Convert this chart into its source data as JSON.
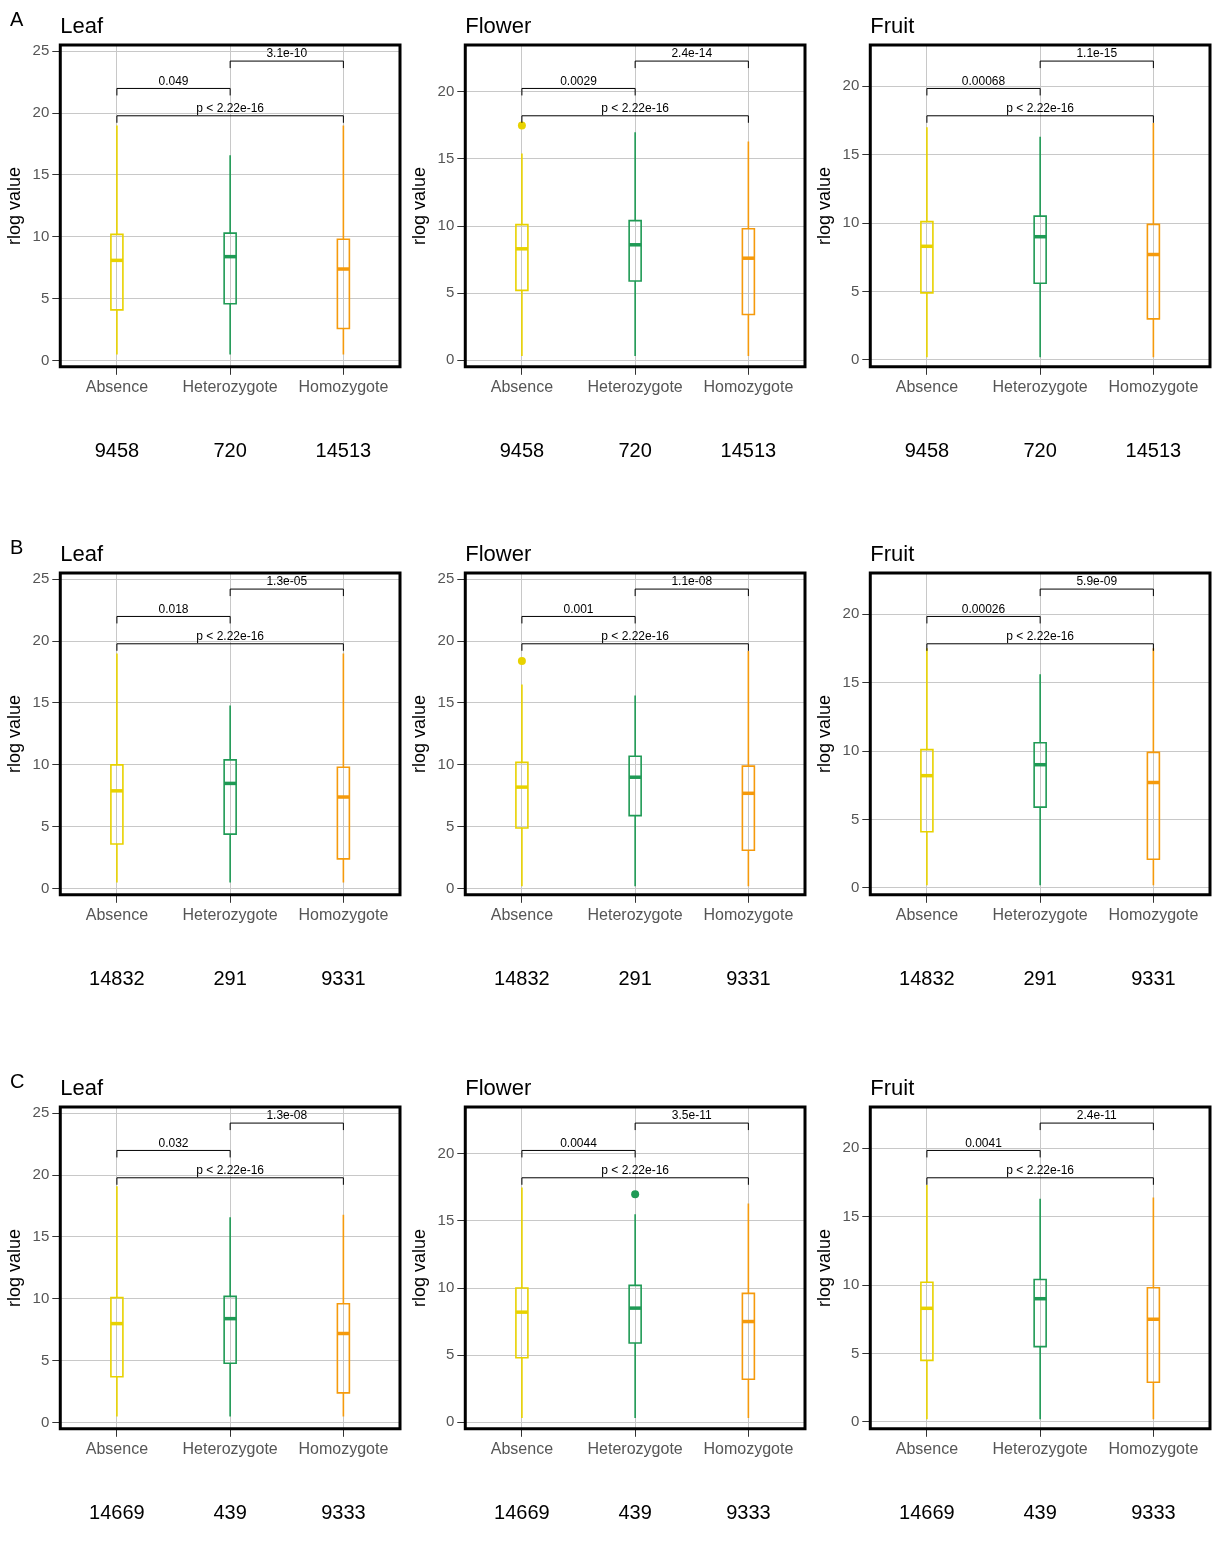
{
  "chart_data": [
    {
      "type": "box",
      "title": "Leaf",
      "ylabel": "rlog value",
      "categories": [
        "Absence",
        "Heterozygote",
        "Homozygote"
      ],
      "colors": [
        "#e8d200",
        "#1f9a55",
        "#f59a0c"
      ],
      "ylim": [
        -0.5,
        25.5
      ],
      "yticks": [
        0,
        5,
        10,
        15,
        20,
        25
      ],
      "grid": true,
      "legend": false,
      "boxes": [
        {
          "low": 0.5,
          "q1": 4.1,
          "median": 8.1,
          "q3": 10.2,
          "high": 19
        },
        {
          "low": 0.5,
          "q1": 4.6,
          "median": 8.4,
          "q3": 10.3,
          "high": 16.6
        },
        {
          "low": 0.5,
          "q1": 2.6,
          "median": 7.4,
          "q3": 9.8,
          "high": 19
        }
      ],
      "annotations": [
        "0.049",
        "3.1e-10",
        "p < 2.22e-16",
        "A",
        "9458",
        "720",
        "14513"
      ]
    },
    {
      "type": "box",
      "title": "Flower",
      "ylabel": "rlog value",
      "categories": [
        "Absence",
        "Heterozygote",
        "Homozygote"
      ],
      "colors": [
        "#e8d200",
        "#1f9a55",
        "#f59a0c"
      ],
      "ylim": [
        -0.5,
        23.5
      ],
      "yticks": [
        0,
        5,
        10,
        15,
        20
      ],
      "grid": true,
      "legend": false,
      "boxes": [
        {
          "low": 0.3,
          "q1": 5.2,
          "median": 8.3,
          "q3": 10.1,
          "high": 15.4,
          "outliers": [
            17.5
          ]
        },
        {
          "low": 0.3,
          "q1": 5.9,
          "median": 8.6,
          "q3": 10.4,
          "high": 17
        },
        {
          "low": 0.3,
          "q1": 3.4,
          "median": 7.6,
          "q3": 9.8,
          "high": 16.3
        }
      ],
      "annotations": [
        "0.0029",
        "2.4e-14",
        "p < 2.22e-16",
        "9458",
        "720",
        "14513"
      ]
    },
    {
      "type": "box",
      "title": "Fruit",
      "ylabel": "rlog value",
      "categories": [
        "Absence",
        "Heterozygote",
        "Homozygote"
      ],
      "colors": [
        "#e8d200",
        "#1f9a55",
        "#f59a0c"
      ],
      "ylim": [
        -0.5,
        23
      ],
      "yticks": [
        0,
        5,
        10,
        15,
        20
      ],
      "grid": true,
      "legend": false,
      "boxes": [
        {
          "low": 0.2,
          "q1": 4.9,
          "median": 8.3,
          "q3": 10.1,
          "high": 17
        },
        {
          "low": 0.2,
          "q1": 5.6,
          "median": 9,
          "q3": 10.5,
          "high": 16.3
        },
        {
          "low": 0.2,
          "q1": 3,
          "median": 7.7,
          "q3": 9.9,
          "high": 17.3
        }
      ],
      "annotations": [
        "0.00068",
        "1.1e-15",
        "p < 2.22e-16",
        "9458",
        "720",
        "14513"
      ]
    },
    {
      "type": "box",
      "title": "Leaf",
      "ylabel": "rlog value",
      "categories": [
        "Absence",
        "Heterozygote",
        "Homozygote"
      ],
      "colors": [
        "#e8d200",
        "#1f9a55",
        "#f59a0c"
      ],
      "ylim": [
        -0.5,
        25.5
      ],
      "yticks": [
        0,
        5,
        10,
        15,
        20,
        25
      ],
      "grid": true,
      "legend": false,
      "boxes": [
        {
          "low": 0.5,
          "q1": 3.6,
          "median": 7.9,
          "q3": 10,
          "high": 19
        },
        {
          "low": 0.5,
          "q1": 4.4,
          "median": 8.5,
          "q3": 10.4,
          "high": 14.8
        },
        {
          "low": 0.5,
          "q1": 2.4,
          "median": 7.4,
          "q3": 9.8,
          "high": 19
        }
      ],
      "annotations": [
        "0.018",
        "1.3e-05",
        "p < 2.22e-16",
        "B",
        "14832",
        "291",
        "9331"
      ]
    },
    {
      "type": "box",
      "title": "Flower",
      "ylabel": "rlog value",
      "categories": [
        "Absence",
        "Heterozygote",
        "Homozygote"
      ],
      "colors": [
        "#e8d200",
        "#1f9a55",
        "#f59a0c"
      ],
      "ylim": [
        -0.5,
        25.5
      ],
      "yticks": [
        0,
        5,
        10,
        15,
        20,
        25
      ],
      "grid": true,
      "legend": false,
      "boxes": [
        {
          "low": 0.2,
          "q1": 4.9,
          "median": 8.2,
          "q3": 10.2,
          "high": 16.5,
          "outliers": [
            18.4
          ]
        },
        {
          "low": 0.2,
          "q1": 5.9,
          "median": 9,
          "q3": 10.7,
          "high": 15.6
        },
        {
          "low": 0.2,
          "q1": 3.1,
          "median": 7.7,
          "q3": 9.9,
          "high": 19.2
        }
      ],
      "annotations": [
        "0.001",
        "1.1e-08",
        "p < 2.22e-16",
        "14832",
        "291",
        "9331"
      ]
    },
    {
      "type": "box",
      "title": "Fruit",
      "ylabel": "rlog value",
      "categories": [
        "Absence",
        "Heterozygote",
        "Homozygote"
      ],
      "colors": [
        "#e8d200",
        "#1f9a55",
        "#f59a0c"
      ],
      "ylim": [
        -0.5,
        23
      ],
      "yticks": [
        0,
        5,
        10,
        15,
        20
      ],
      "grid": true,
      "legend": false,
      "boxes": [
        {
          "low": 0.2,
          "q1": 4.1,
          "median": 8.2,
          "q3": 10.1,
          "high": 17.5
        },
        {
          "low": 0.2,
          "q1": 5.9,
          "median": 9,
          "q3": 10.6,
          "high": 15.6
        },
        {
          "low": 0.2,
          "q1": 2.1,
          "median": 7.7,
          "q3": 9.9,
          "high": 17.5
        }
      ],
      "annotations": [
        "0.00026",
        "5.9e-09",
        "p < 2.22e-16",
        "14832",
        "291",
        "9331"
      ]
    },
    {
      "type": "box",
      "title": "Leaf",
      "ylabel": "rlog value",
      "categories": [
        "Absence",
        "Heterozygote",
        "Homozygote"
      ],
      "colors": [
        "#e8d200",
        "#1f9a55",
        "#f59a0c"
      ],
      "ylim": [
        -0.5,
        25.5
      ],
      "yticks": [
        0,
        5,
        10,
        15,
        20,
        25
      ],
      "grid": true,
      "legend": false,
      "boxes": [
        {
          "low": 0.5,
          "q1": 3.7,
          "median": 8,
          "q3": 10.1,
          "high": 19.1
        },
        {
          "low": 0.5,
          "q1": 4.8,
          "median": 8.4,
          "q3": 10.2,
          "high": 16.6
        },
        {
          "low": 0.5,
          "q1": 2.4,
          "median": 7.2,
          "q3": 9.6,
          "high": 16.8
        }
      ],
      "annotations": [
        "0.032",
        "1.3e-08",
        "p < 2.22e-16",
        "C",
        "14669",
        "439",
        "9333"
      ]
    },
    {
      "type": "box",
      "title": "Flower",
      "ylabel": "rlog value",
      "categories": [
        "Absence",
        "Heterozygote",
        "Homozygote"
      ],
      "colors": [
        "#e8d200",
        "#1f9a55",
        "#f59a0c"
      ],
      "ylim": [
        -0.5,
        23.5
      ],
      "yticks": [
        0,
        5,
        10,
        15,
        20
      ],
      "grid": true,
      "legend": false,
      "boxes": [
        {
          "low": 0.3,
          "q1": 4.8,
          "median": 8.2,
          "q3": 10,
          "high": 17.5
        },
        {
          "low": 0.3,
          "q1": 5.9,
          "median": 8.5,
          "q3": 10.2,
          "high": 15.5,
          "outliers": [
            17
          ]
        },
        {
          "low": 0.3,
          "q1": 3.2,
          "median": 7.5,
          "q3": 9.6,
          "high": 16.3
        }
      ],
      "annotations": [
        "0.0044",
        "3.5e-11",
        "p < 2.22e-16",
        "14669",
        "439",
        "9333"
      ]
    },
    {
      "type": "box",
      "title": "Fruit",
      "ylabel": "rlog value",
      "categories": [
        "Absence",
        "Heterozygote",
        "Homozygote"
      ],
      "colors": [
        "#e8d200",
        "#1f9a55",
        "#f59a0c"
      ],
      "ylim": [
        -0.5,
        23
      ],
      "yticks": [
        0,
        5,
        10,
        15,
        20
      ],
      "grid": true,
      "legend": false,
      "boxes": [
        {
          "low": 0.2,
          "q1": 4.5,
          "median": 8.3,
          "q3": 10.2,
          "high": 17.3
        },
        {
          "low": 0.2,
          "q1": 5.5,
          "median": 9,
          "q3": 10.4,
          "high": 16.3
        },
        {
          "low": 0.2,
          "q1": 2.9,
          "median": 7.5,
          "q3": 9.8,
          "high": 16.4
        }
      ],
      "annotations": [
        "0.0041",
        "2.4e-11",
        "p < 2.22e-16",
        "14669",
        "439",
        "9333"
      ]
    }
  ]
}
